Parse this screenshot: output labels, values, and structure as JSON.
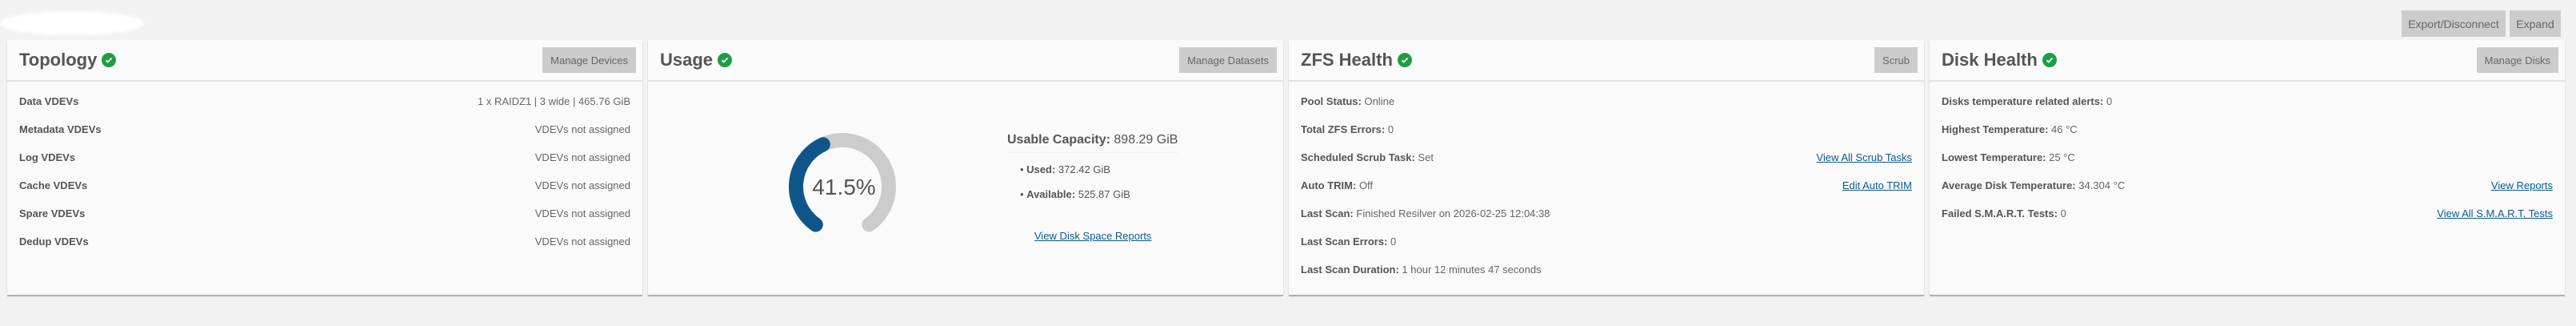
{
  "top_buttons": {
    "export": "Export/Disconnect",
    "expand": "Expand"
  },
  "colors": {
    "accent": "#0e568a",
    "ok": "#1f9d47",
    "gauge_track": "#cccccc",
    "link": "#0b5a8e"
  },
  "topology": {
    "title": "Topology",
    "status_icon": "check-circle-icon",
    "button": "Manage Devices",
    "rows": [
      {
        "label": "Data VDEVs",
        "value": "1 x RAIDZ1 | 3 wide | 465.76 GiB"
      },
      {
        "label": "Metadata VDEVs",
        "value": "VDEVs not assigned"
      },
      {
        "label": "Log VDEVs",
        "value": "VDEVs not assigned"
      },
      {
        "label": "Cache VDEVs",
        "value": "VDEVs not assigned"
      },
      {
        "label": "Spare VDEVs",
        "value": "VDEVs not assigned"
      },
      {
        "label": "Dedup VDEVs",
        "value": "VDEVs not assigned"
      }
    ]
  },
  "usage": {
    "title": "Usage",
    "button": "Manage Datasets",
    "percent_label": "41.5%",
    "percent": 41.5,
    "capacity_label": "Usable Capacity:",
    "capacity_value": "898.29 GiB",
    "used_label": "Used:",
    "used_value": "372.42 GiB",
    "available_label": "Available:",
    "available_value": "525.87 GiB",
    "link": "View Disk Space Reports"
  },
  "zfs": {
    "title": "ZFS Health",
    "button": "Scrub",
    "rows": [
      {
        "label": "Pool Status:",
        "value": "Online",
        "link": ""
      },
      {
        "label": "Total ZFS Errors:",
        "value": "0",
        "link": ""
      },
      {
        "label": "Scheduled Scrub Task:",
        "value": "Set",
        "link": "View All Scrub Tasks"
      },
      {
        "label": "Auto TRIM:",
        "value": "Off",
        "link": "Edit Auto TRIM"
      },
      {
        "label": "Last Scan:",
        "value": "Finished Resilver on 2026-02-25 12:04:38",
        "link": ""
      },
      {
        "label": "Last Scan Errors:",
        "value": "0",
        "link": ""
      },
      {
        "label": "Last Scan Duration:",
        "value": "1 hour 12 minutes 47 seconds",
        "link": ""
      }
    ]
  },
  "disk": {
    "title": "Disk Health",
    "button": "Manage Disks",
    "rows": [
      {
        "label": "Disks temperature related alerts:",
        "value": "0",
        "link": ""
      },
      {
        "label": "Highest Temperature:",
        "value": "46 °C",
        "link": ""
      },
      {
        "label": "Lowest Temperature:",
        "value": "25 °C",
        "link": ""
      },
      {
        "label": "Average Disk Temperature:",
        "value": "34.304 °C",
        "link": "View Reports"
      },
      {
        "label": "Failed S.M.A.R.T. Tests:",
        "value": "0",
        "link": "View All S.M.A.R.T. Tests"
      }
    ]
  }
}
